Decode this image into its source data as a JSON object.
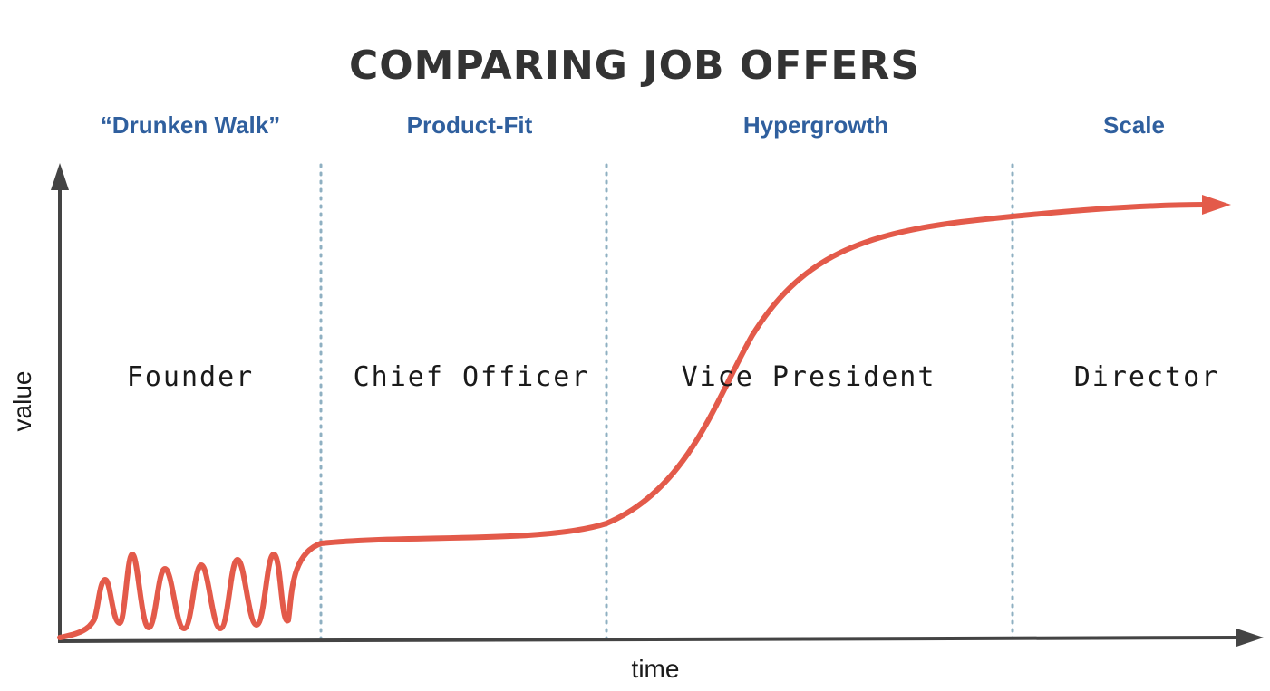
{
  "title": "COMPARING JOB OFFERS",
  "stages": [
    {
      "label": "“Drunken Walk”",
      "role": "Founder"
    },
    {
      "label": "Product-Fit",
      "role": "Chief Officer"
    },
    {
      "label": "Hypergrowth",
      "role": "Vice President"
    },
    {
      "label": "Scale",
      "role": "Director"
    }
  ],
  "axes": {
    "x_label": "time",
    "y_label": "value"
  },
  "colors": {
    "title": "#333333",
    "stage_label": "#2f5f9e",
    "curve": "#e35a4a",
    "divider": "#8fb0c2",
    "axis": "#444444"
  }
}
